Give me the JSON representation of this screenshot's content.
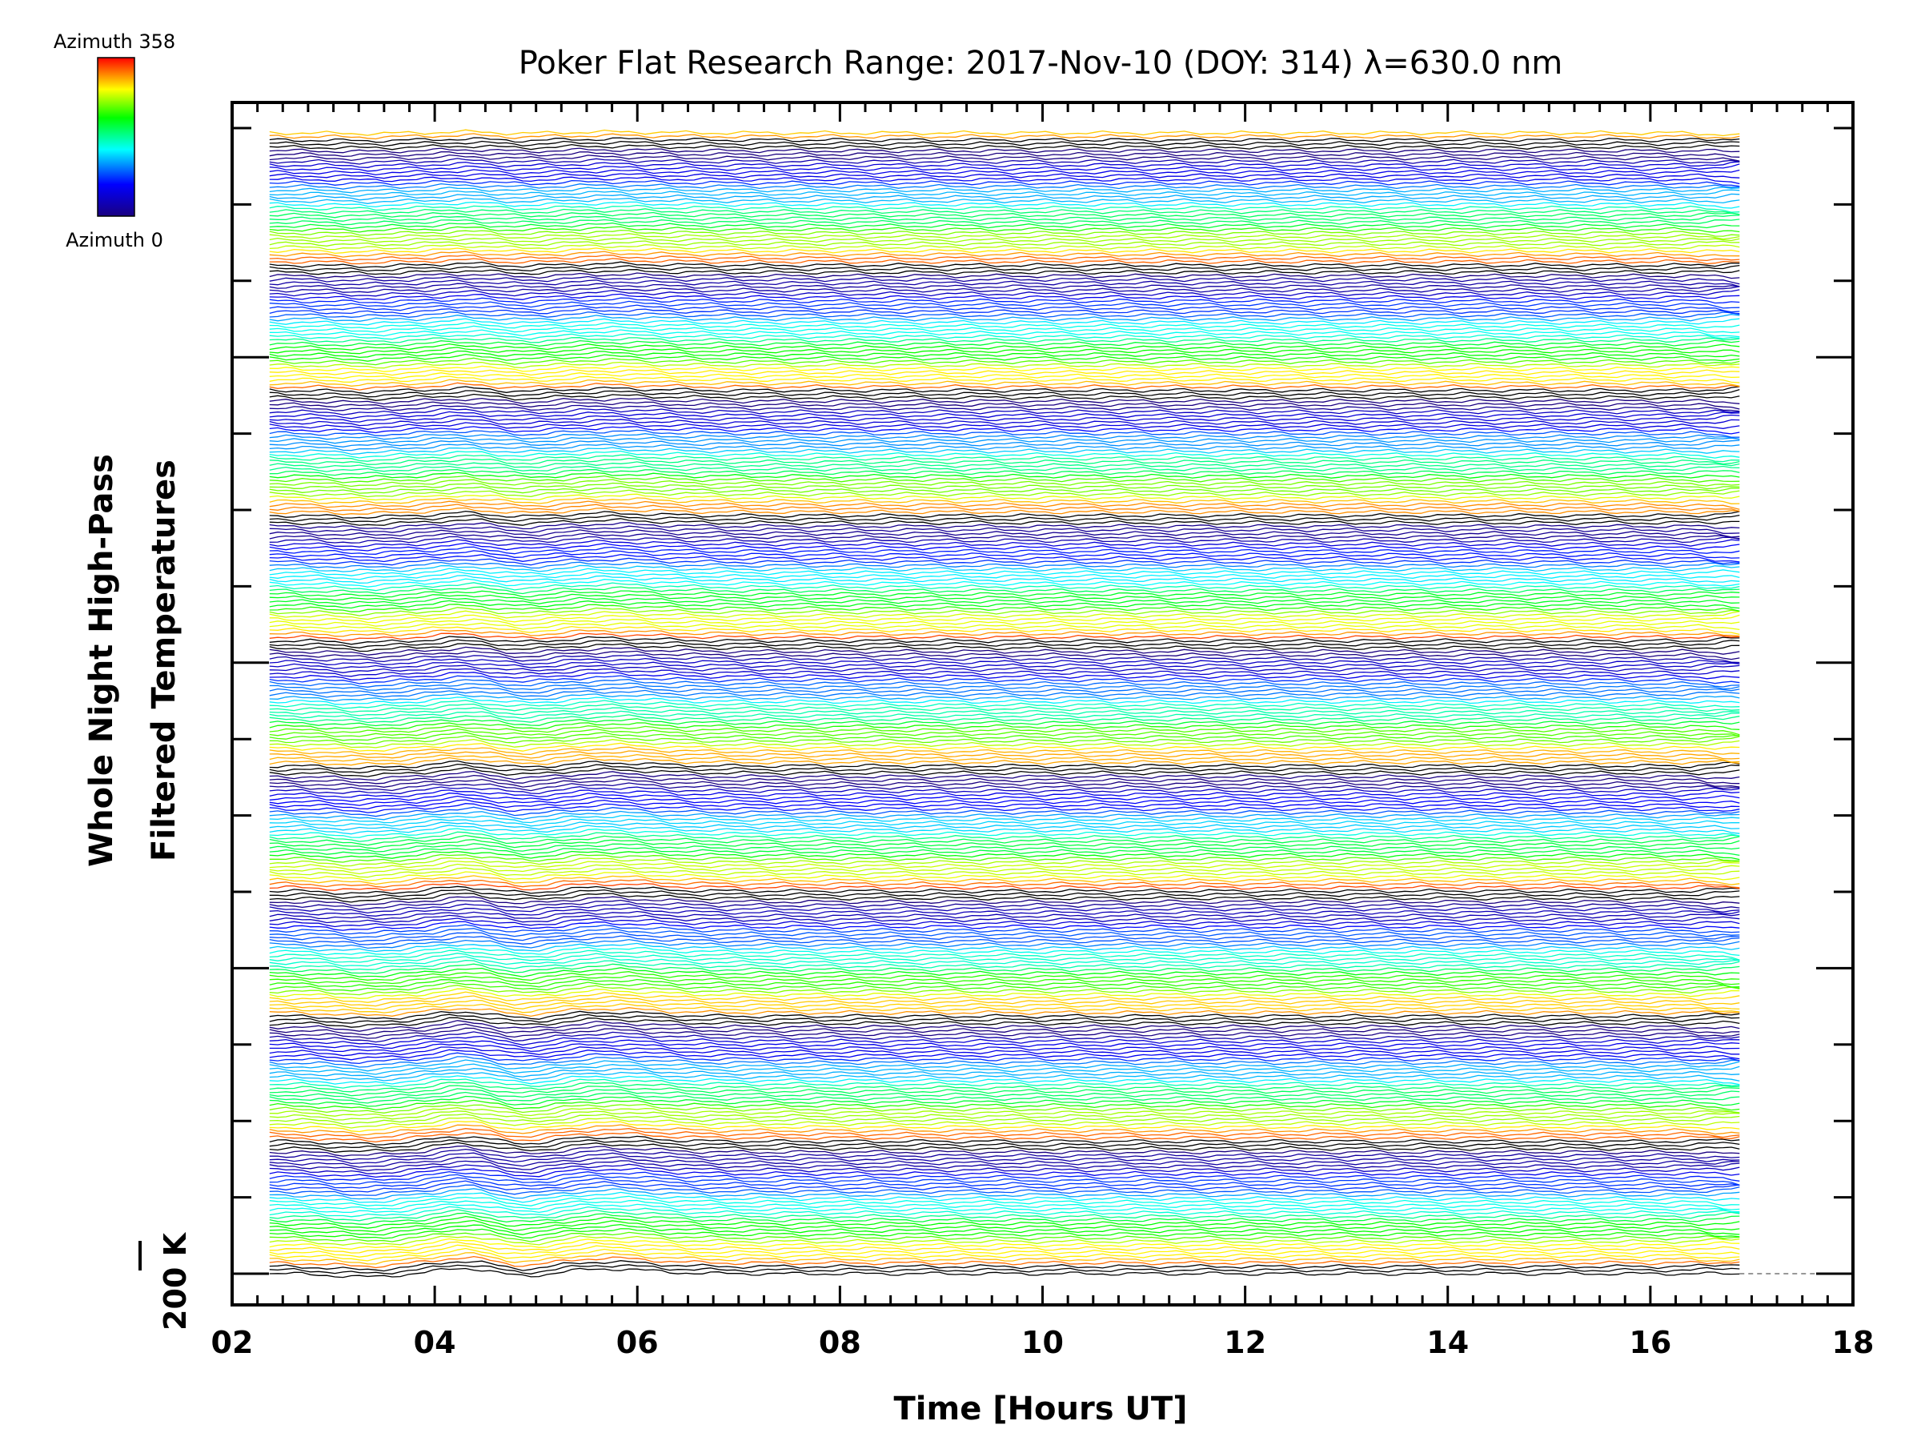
{
  "chart_data": {
    "type": "line",
    "title": "Poker Flat Research Range: 2017-Nov-10 (DOY: 314) λ=630.0 nm",
    "xlabel": "Time [Hours UT]",
    "ylabel_line1": "Whole Night High-Pass",
    "ylabel_line2": "Filtered Temperatures",
    "scale_bar_label": "200 K",
    "xlim": [
      2,
      18
    ],
    "x_ticks": [
      "02",
      "04",
      "06",
      "08",
      "10",
      "12",
      "14",
      "16",
      "18"
    ],
    "data_time_range": [
      2.37,
      16.88
    ],
    "series_count": 320,
    "azimuth_range": [
      0,
      358
    ],
    "colorbar": {
      "top_label": "Azimuth 358",
      "bottom_label": "Azimuth 0",
      "colormap": "rainbow",
      "stops": [
        "#1a0080",
        "#0000ff",
        "#00ffff",
        "#00ff00",
        "#ffff00",
        "#ff0000"
      ]
    },
    "grid": false,
    "legend": "colorbar top-left"
  }
}
